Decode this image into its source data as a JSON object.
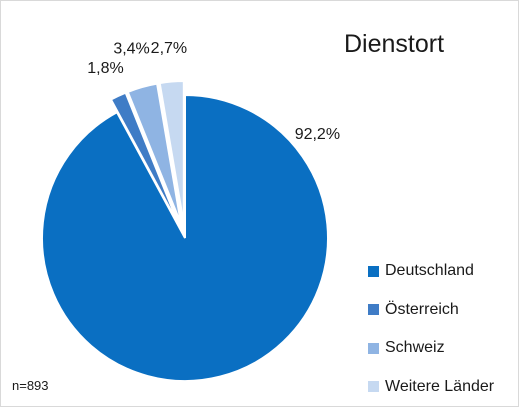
{
  "chart_data": {
    "type": "pie",
    "title": "Dienstort",
    "note": "n=893",
    "legend_position": "bottom-right",
    "exploded": true,
    "slices": [
      {
        "name": "Deutschland",
        "value": 92.2,
        "label": "92,2%",
        "color": "#0a6fc2"
      },
      {
        "name": "Österreich",
        "value": 1.8,
        "label": "1,8%",
        "color": "#3f7cc6"
      },
      {
        "name": "Schweiz",
        "value": 3.4,
        "label": "3,4%",
        "color": "#8fb4e3"
      },
      {
        "name": "Weitere Länder",
        "value": 2.7,
        "label": "2,7%",
        "color": "#c6d9f1"
      }
    ]
  }
}
